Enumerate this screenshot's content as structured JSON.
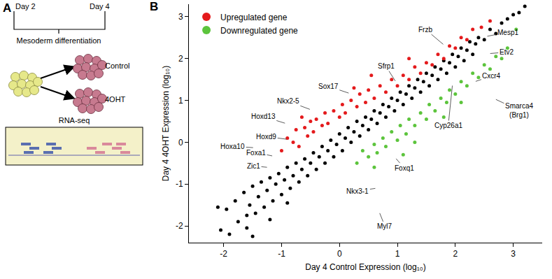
{
  "panel_labels": [
    "A",
    "B"
  ],
  "diagram": {
    "day_start": "Day 2",
    "day_end": "Day 4",
    "stage": "Mesoderm differentiation",
    "conditions": [
      "Control",
      "4OHT"
    ],
    "assay": "RNA-seq"
  },
  "chart_data": {
    "type": "scatter",
    "x_label": "Day 4 Control Expression (log₁₀)",
    "y_label": "Day 4 4OHT Expression (log₁₀)",
    "xlim": [
      -2.6,
      3.5
    ],
    "ylim": [
      -2.4,
      3.3
    ],
    "xticks": [
      -2,
      -1,
      0,
      1,
      2,
      3
    ],
    "yticks": [
      -2,
      -1,
      0,
      1,
      2,
      3
    ],
    "grid": false,
    "legend": "upper left",
    "marker": "circle",
    "series": [
      {
        "color": "#000000",
        "x": [
          -2.05,
          -1.95,
          -1.9,
          -1.8,
          -1.75,
          -1.65,
          -1.6,
          -1.55,
          -1.5,
          -1.45,
          -1.4,
          -1.35,
          -1.3,
          -1.25,
          -1.2,
          -1.15,
          -1.1,
          -1.05,
          -1.0,
          -0.95,
          -0.9,
          -0.85,
          -0.8,
          -0.75,
          -0.7,
          -0.65,
          -0.6,
          -0.55,
          -0.5,
          -0.45,
          -0.4,
          -0.35,
          -0.3,
          -0.25,
          -0.2,
          -0.15,
          -0.1,
          -0.05,
          0,
          0.05,
          0.1,
          0.15,
          0.2,
          0.25,
          0.3,
          0.35,
          0.4,
          0.45,
          0.5,
          0.55,
          0.6,
          0.65,
          0.7,
          0.75,
          0.8,
          0.85,
          0.9,
          0.95,
          1.0,
          1.05,
          1.1,
          1.15,
          1.2,
          1.25,
          1.3,
          1.35,
          1.4,
          1.45,
          1.5,
          1.55,
          1.6,
          1.65,
          1.7,
          1.75,
          1.8,
          1.85,
          1.9,
          1.95,
          2.0,
          2.05,
          2.1,
          2.15,
          2.2,
          2.25,
          2.3,
          2.35,
          2.4,
          2.5,
          2.6,
          2.7,
          2.8,
          2.9,
          3.0,
          3.1,
          3.2,
          -1.2,
          -1.6,
          -0.9,
          -2.1,
          -1.5
        ],
        "values": [
          -2.1,
          -1.6,
          -2.2,
          -1.4,
          -1.9,
          -1.2,
          -1.75,
          -1.5,
          -1.05,
          -1.7,
          -1.3,
          -0.95,
          -1.55,
          -1.15,
          -0.85,
          -1.4,
          -1.0,
          -0.75,
          -1.25,
          -0.9,
          -0.6,
          -1.1,
          -0.8,
          -0.5,
          -0.95,
          -0.65,
          -0.4,
          -0.8,
          -0.5,
          -0.25,
          -0.65,
          -0.35,
          -0.1,
          -0.5,
          -0.2,
          0.05,
          -0.35,
          -0.05,
          0.2,
          -0.2,
          0.1,
          0.35,
          0.0,
          0.25,
          0.5,
          0.15,
          0.4,
          0.6,
          0.3,
          0.55,
          0.75,
          0.45,
          0.7,
          0.9,
          0.6,
          0.85,
          1.05,
          0.75,
          1.0,
          1.2,
          0.9,
          1.15,
          1.35,
          1.05,
          1.3,
          1.5,
          1.2,
          1.45,
          1.65,
          1.35,
          1.6,
          1.8,
          1.5,
          1.75,
          1.95,
          1.65,
          1.9,
          2.1,
          1.8,
          2.05,
          2.25,
          1.95,
          2.2,
          2.4,
          2.1,
          2.35,
          2.5,
          2.45,
          2.7,
          2.6,
          2.85,
          2.95,
          3.05,
          3.1,
          3.25,
          -1.85,
          -2.05,
          -1.45,
          -1.55,
          -2.25
        ]
      },
      {
        "name": "Upregulated gene",
        "color": "#e41a1c",
        "x": [
          -1.0,
          -0.9,
          -0.8,
          -0.75,
          -0.7,
          -0.6,
          -0.55,
          -0.5,
          -0.45,
          -0.4,
          -0.3,
          -0.25,
          -0.2,
          -0.1,
          0,
          0.05,
          0.1,
          0.2,
          0.3,
          0.35,
          0.45,
          0.5,
          0.6,
          0.7,
          0.8,
          0.9,
          1.0,
          1.1,
          1.2,
          1.3,
          1.4,
          1.5,
          1.6,
          1.7,
          1.8,
          1.9,
          2.0,
          2.1,
          2.2,
          2.3,
          2.45,
          2.6,
          0.25,
          0.55,
          -0.65,
          1.2
        ],
        "values": [
          -0.2,
          0.1,
          0.0,
          0.3,
          -0.1,
          0.35,
          0.15,
          0.5,
          0.25,
          0.55,
          0.4,
          0.7,
          0.45,
          0.75,
          0.6,
          0.9,
          0.7,
          1.0,
          0.85,
          1.15,
          0.95,
          1.25,
          1.05,
          1.35,
          1.2,
          1.5,
          1.35,
          1.6,
          1.5,
          1.8,
          1.65,
          1.9,
          1.85,
          2.1,
          2.0,
          2.3,
          2.25,
          2.5,
          2.45,
          2.7,
          2.75,
          2.9,
          1.3,
          1.6,
          0.6,
          2.0
        ]
      },
      {
        "name": "Downregulated gene",
        "color": "#5cc43c",
        "x": [
          0.3,
          0.4,
          0.5,
          0.6,
          0.65,
          0.75,
          0.8,
          0.9,
          1.0,
          1.05,
          1.15,
          1.2,
          1.3,
          1.4,
          1.5,
          1.55,
          1.65,
          1.75,
          1.85,
          1.9,
          2.0,
          2.1,
          2.2,
          2.3,
          2.4,
          2.5,
          2.6,
          2.7,
          2.8,
          2.9,
          3.05,
          1.1,
          1.3,
          1.8,
          2.1,
          0.6
        ],
        "values": [
          -0.5,
          -0.2,
          -0.35,
          -0.05,
          -0.25,
          0.1,
          -0.1,
          0.25,
          0.05,
          0.4,
          0.2,
          0.55,
          0.4,
          0.7,
          0.55,
          0.9,
          0.75,
          1.05,
          0.95,
          1.25,
          1.15,
          1.45,
          1.35,
          1.65,
          1.55,
          1.85,
          1.75,
          2.05,
          2.0,
          2.25,
          2.7,
          -0.3,
          0.0,
          0.6,
          0.95,
          -0.6
        ]
      }
    ],
    "annotations": [
      {
        "text": "Frzb",
        "x": 1.8,
        "y": 2.33
      },
      {
        "text": "Mesp1",
        "x": 2.54,
        "y": 2.53
      },
      {
        "text": "Etv2",
        "x": 2.59,
        "y": 2.12
      },
      {
        "text": "Cxcr4",
        "x": 2.34,
        "y": 1.45
      },
      {
        "text": "Smarca4\n(Brg1)",
        "x": 2.69,
        "y": 1.03
      },
      {
        "text": "Cyp26a1",
        "x": 1.95,
        "y": 1.37
      },
      {
        "text": "Sfrp1",
        "x": 0.97,
        "y": 1.45
      },
      {
        "text": "Sox17",
        "x": 0.17,
        "y": 1.17
      },
      {
        "text": "Nkx2-5",
        "x": -0.5,
        "y": 0.78
      },
      {
        "text": "Hoxd13",
        "x": -0.93,
        "y": 0.45
      },
      {
        "text": "Hoxd9",
        "x": -0.9,
        "y": 0.07
      },
      {
        "text": "Hoxa10",
        "x": -1.48,
        "y": -0.13
      },
      {
        "text": "Foxa1",
        "x": -1.15,
        "y": -0.33
      },
      {
        "text": "Zic1",
        "x": -1.24,
        "y": -0.6
      },
      {
        "text": "Foxq1",
        "x": 0.97,
        "y": -0.38
      },
      {
        "text": "Nkx3-1",
        "x": 0.63,
        "y": -1.1
      },
      {
        "text": "Myl7",
        "x": 0.69,
        "y": -1.68
      }
    ]
  }
}
